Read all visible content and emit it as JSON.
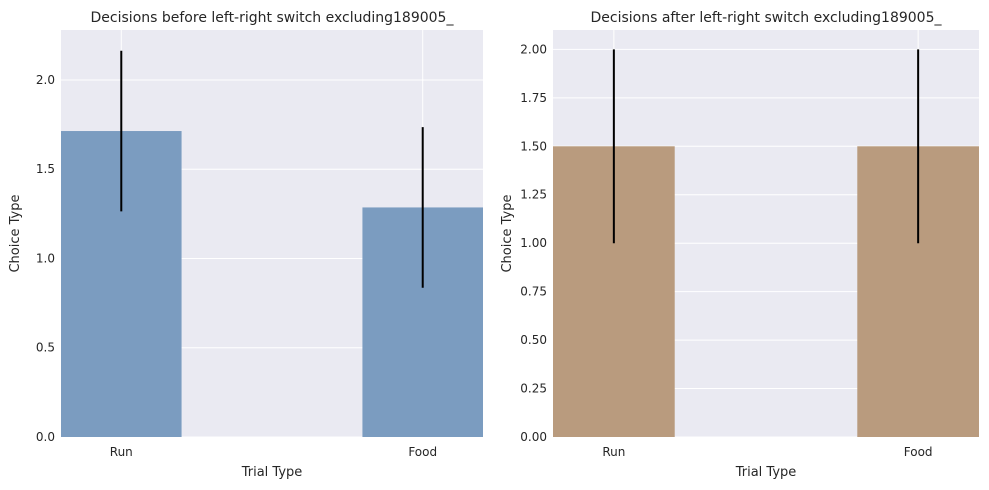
{
  "chart_data": [
    {
      "type": "bar",
      "title": "Decisions before left-right switch excluding189005_",
      "xlabel": "Trial Type",
      "ylabel": "Choice Type",
      "categories": [
        "Run",
        "Food"
      ],
      "values": [
        1.714,
        1.286
      ],
      "errors": [
        0.45,
        0.45
      ],
      "ylim": [
        0,
        2.28
      ],
      "yticks": [
        0.0,
        0.5,
        1.0,
        1.5,
        2.0
      ],
      "ytick_labels": [
        "0.0",
        "0.5",
        "1.0",
        "1.5",
        "2.0"
      ],
      "bar_color": "#7b9cc0",
      "grid": true
    },
    {
      "type": "bar",
      "title": "Decisions after left-right switch excluding189005_",
      "xlabel": "Trial Type",
      "ylabel": "Choice Type",
      "categories": [
        "Run",
        "Food"
      ],
      "values": [
        1.5,
        1.5
      ],
      "errors": [
        0.5,
        0.5
      ],
      "ylim": [
        0,
        2.1
      ],
      "yticks": [
        0.0,
        0.25,
        0.5,
        0.75,
        1.0,
        1.25,
        1.5,
        1.75,
        2.0
      ],
      "ytick_labels": [
        "0.00",
        "0.25",
        "0.50",
        "0.75",
        "1.00",
        "1.25",
        "1.50",
        "1.75",
        "2.00"
      ],
      "bar_color": "#b99b7e",
      "grid": true
    }
  ],
  "colors": {
    "plot_background": "#eaeaf2",
    "grid": "#ffffff",
    "error_bar": "#000000"
  }
}
